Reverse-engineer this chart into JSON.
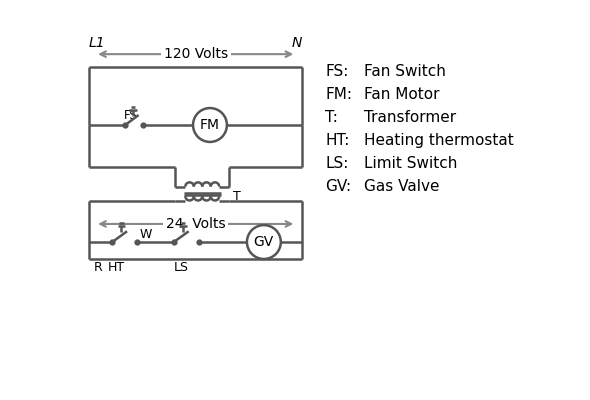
{
  "legend": [
    [
      "FS:",
      "Fan Switch"
    ],
    [
      "FM:",
      "Fan Motor"
    ],
    [
      "T:",
      "Transformer"
    ],
    [
      "HT:",
      "Heating thermostat"
    ],
    [
      "LS:",
      "Limit Switch"
    ],
    [
      "GV:",
      "Gas Valve"
    ]
  ],
  "line_color": "#555555",
  "bg_color": "#ffffff",
  "text_color": "#000000",
  "arrow_color": "#888888",
  "label_L1": "L1",
  "label_N": "N",
  "label_120": "120 Volts",
  "label_24": "24  Volts",
  "label_T": "T",
  "label_FS": "FS",
  "label_FM": "FM",
  "label_GV": "GV",
  "label_R": "R",
  "label_W": "W",
  "label_HT": "HT",
  "label_LS": "LS"
}
